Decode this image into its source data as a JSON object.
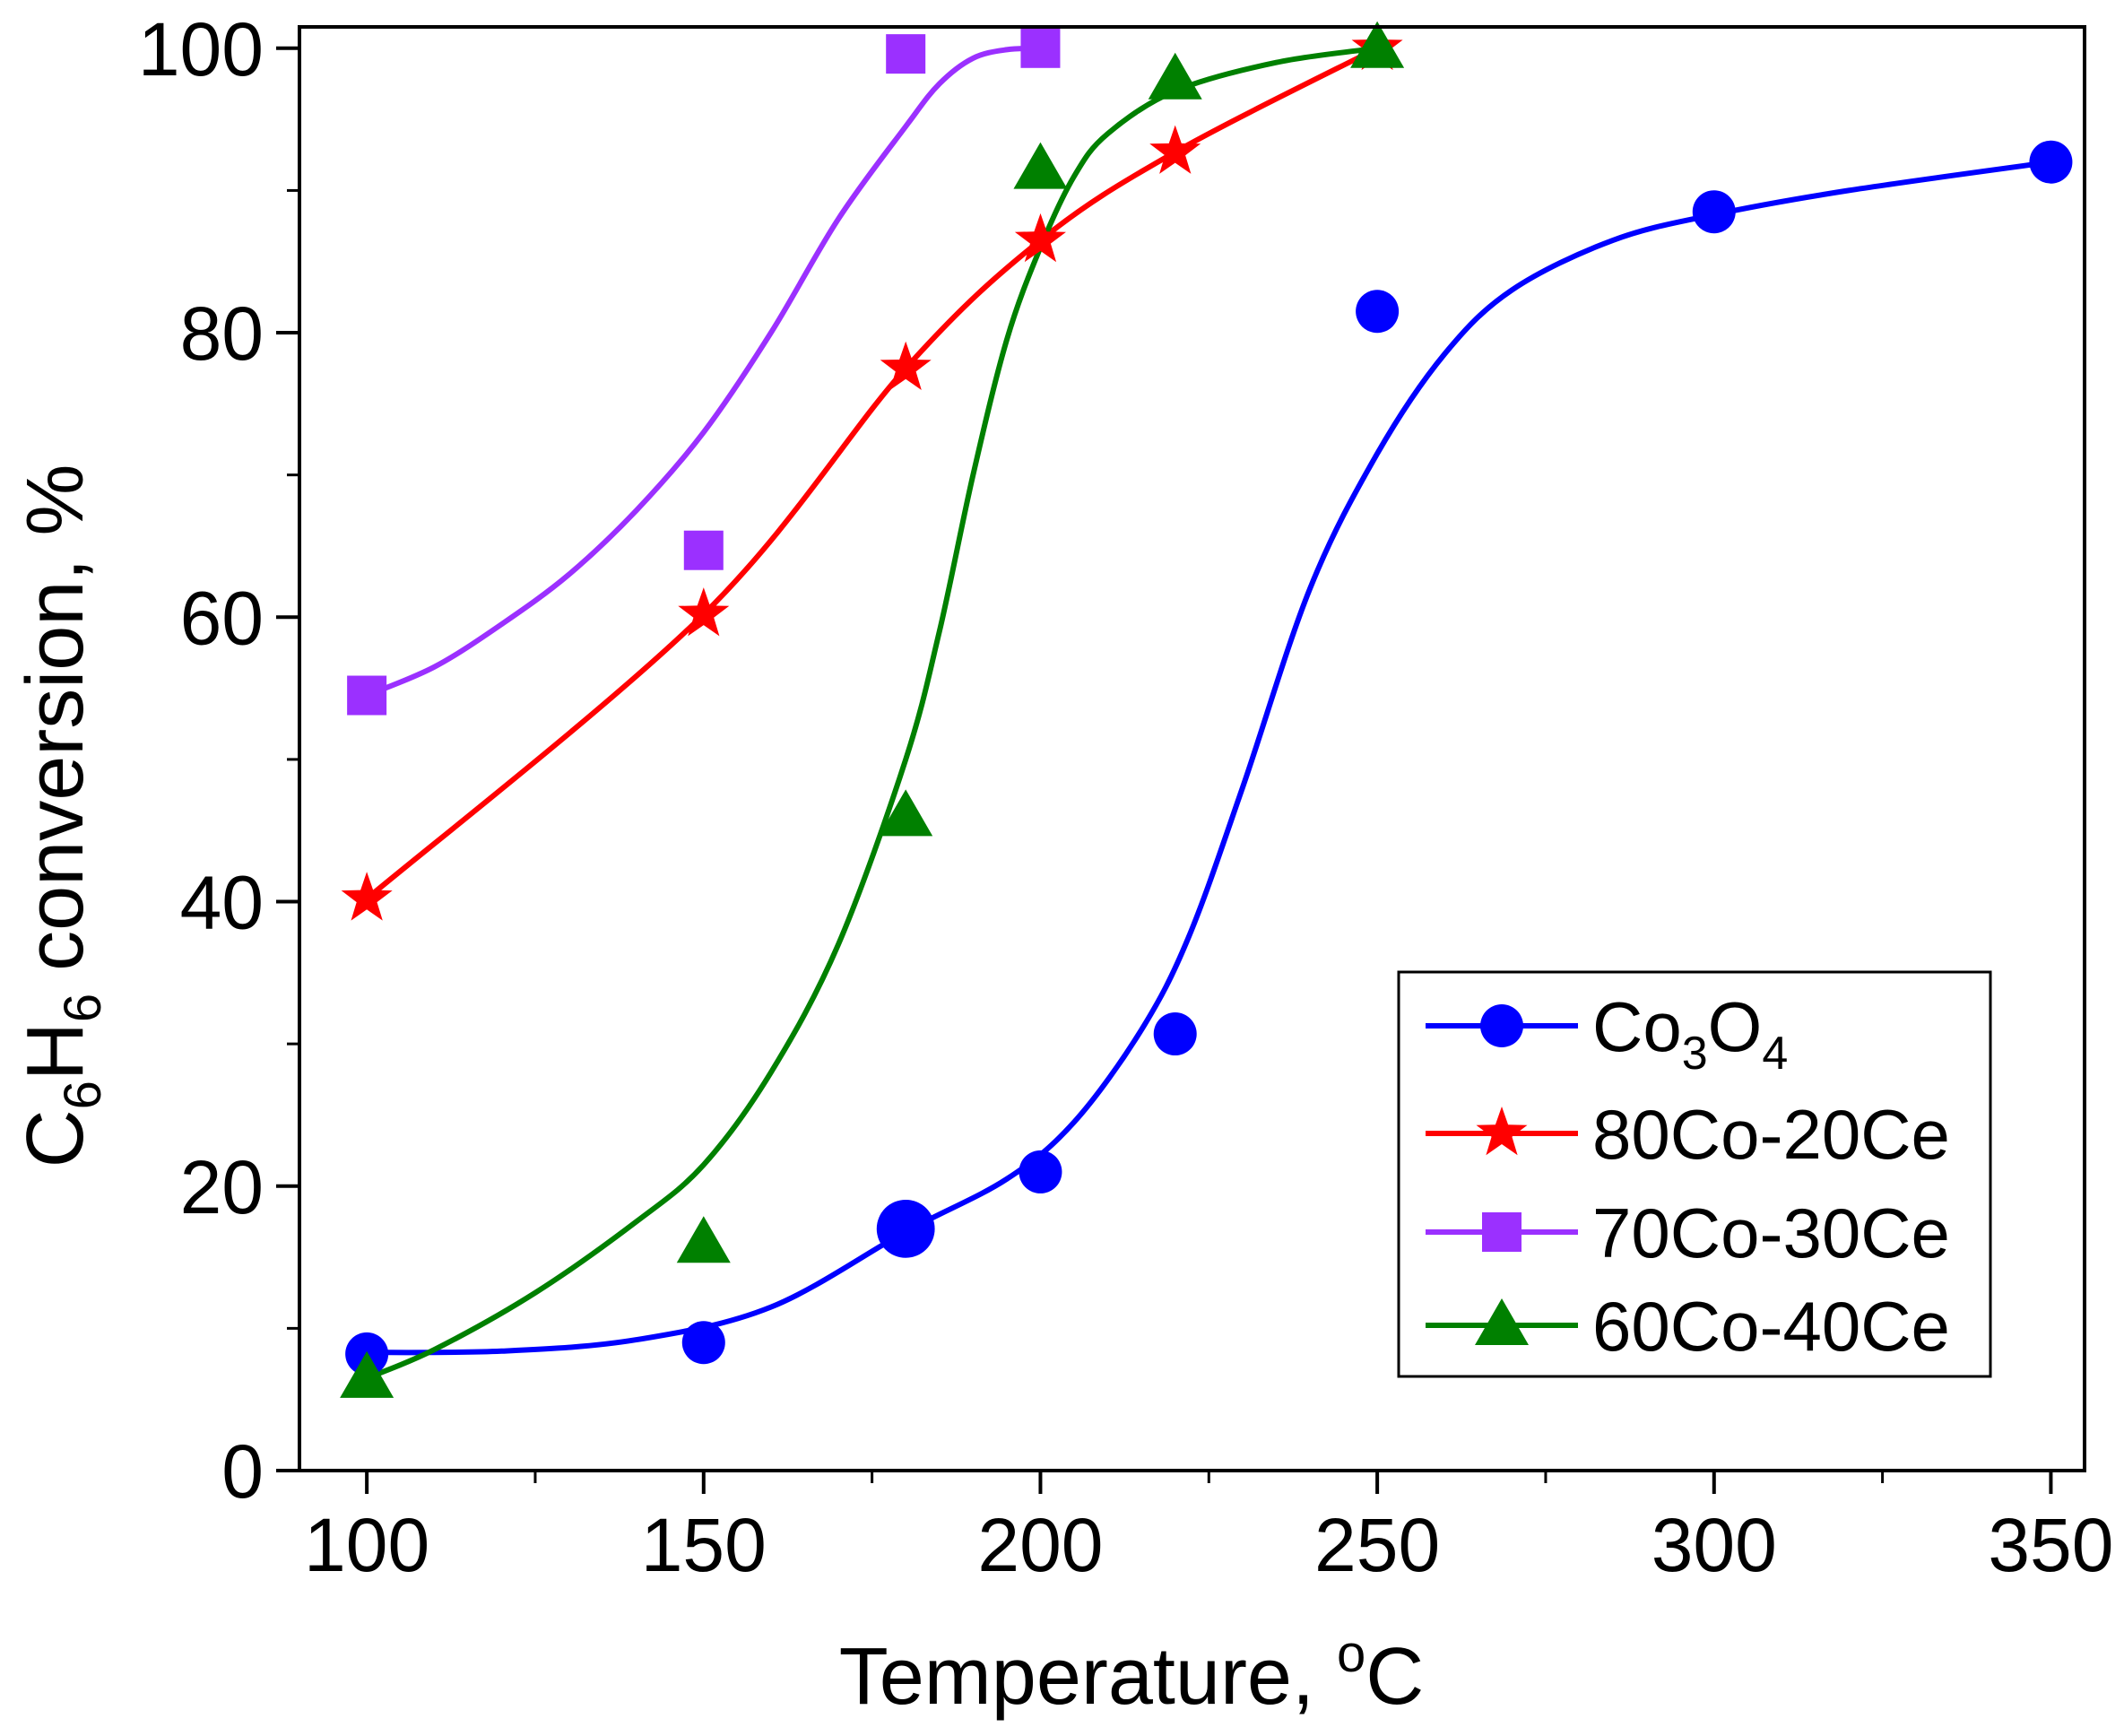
{
  "chart_data": {
    "type": "scatter",
    "title": "",
    "xlabel": "Temperature, ",
    "xlabel_unit": "C",
    "xlabel_degree": "o",
    "ylabel": {
      "parts": [
        {
          "text": "C",
          "sub": false
        },
        {
          "text": "6",
          "sub": true
        },
        {
          "text": "H",
          "sub": false
        },
        {
          "text": "6",
          "sub": true
        },
        {
          "text": " conversion, %",
          "sub": false
        }
      ]
    },
    "xlim": [
      90,
      355
    ],
    "ylim": [
      0,
      101.5
    ],
    "xticks_major": [
      100,
      150,
      200,
      250,
      300,
      350
    ],
    "xticks_minor": [
      125,
      175,
      225,
      275,
      325
    ],
    "yticks_major": [
      0,
      20,
      40,
      60,
      80,
      100
    ],
    "yticks_minor": [
      10,
      30,
      50,
      70,
      90
    ],
    "legend_position": "lower-right",
    "series": [
      {
        "name": "Co3O4",
        "legend_label": [
          {
            "text": "Co",
            "sub": false
          },
          {
            "text": "3",
            "sub": true
          },
          {
            "text": "O",
            "sub": false
          },
          {
            "text": "4",
            "sub": true
          }
        ],
        "color": "#0000ff",
        "marker": "circle",
        "x": [
          100,
          150,
          180,
          200,
          220,
          250,
          300,
          350
        ],
        "y": [
          8.2,
          9.0,
          17.0,
          21.0,
          30.7,
          81.5,
          88.5,
          92.0
        ],
        "fit_x": [
          100,
          120,
          140,
          160,
          180,
          195,
          205,
          215,
          222,
          230,
          240,
          250,
          260,
          270,
          285,
          300,
          320,
          350
        ],
        "fit_y": [
          8.3,
          8.4,
          9.2,
          11.5,
          16.8,
          20.5,
          24.5,
          31.0,
          37.5,
          48.0,
          62.0,
          71.5,
          78.5,
          83.0,
          86.5,
          88.3,
          90.0,
          92.0
        ]
      },
      {
        "name": "80Co-20Ce",
        "legend_label": [
          {
            "text": "80Co-20Ce",
            "sub": false
          }
        ],
        "color": "#ff0000",
        "marker": "star",
        "x": [
          100,
          150,
          180,
          200,
          220,
          250
        ],
        "y": [
          40.2,
          60.2,
          77.5,
          86.5,
          92.7,
          100.0
        ],
        "fit_x": [
          100,
          150,
          180,
          200,
          220,
          250
        ],
        "fit_y": [
          40.2,
          60.2,
          77.5,
          86.5,
          92.7,
          100.0
        ]
      },
      {
        "name": "70Co-30Ce",
        "legend_label": [
          {
            "text": "70Co-30Ce",
            "sub": false
          }
        ],
        "color": "#9b30ff",
        "marker": "square",
        "x": [
          100,
          150,
          180,
          200
        ],
        "y": [
          54.5,
          64.7,
          99.6,
          100.0
        ],
        "fit_x": [
          100,
          110,
          120,
          130,
          140,
          150,
          160,
          170,
          180,
          185,
          190,
          195,
          200
        ],
        "fit_y": [
          54.5,
          56.5,
          59.5,
          63.0,
          67.5,
          73.0,
          80.0,
          88.0,
          94.5,
          97.5,
          99.3,
          99.9,
          100.0
        ]
      },
      {
        "name": "60Co-40Ce",
        "legend_label": [
          {
            "text": "60Co-40Ce",
            "sub": false
          }
        ],
        "color": "#008000",
        "marker": "triangle",
        "x": [
          100,
          150,
          180,
          200,
          220,
          250
        ],
        "y": [
          6.5,
          16.0,
          46.0,
          91.5,
          97.8,
          100.0
        ],
        "fit_x": [
          100,
          110,
          125,
          140,
          150,
          160,
          170,
          180,
          185,
          190,
          195,
          200,
          205,
          210,
          220,
          235,
          250
        ],
        "fit_y": [
          6.5,
          8.5,
          12.5,
          17.5,
          21.5,
          28.0,
          37.0,
          50.0,
          59.0,
          70.0,
          79.5,
          86.0,
          91.0,
          94.0,
          97.0,
          99.0,
          100.0
        ]
      }
    ]
  }
}
